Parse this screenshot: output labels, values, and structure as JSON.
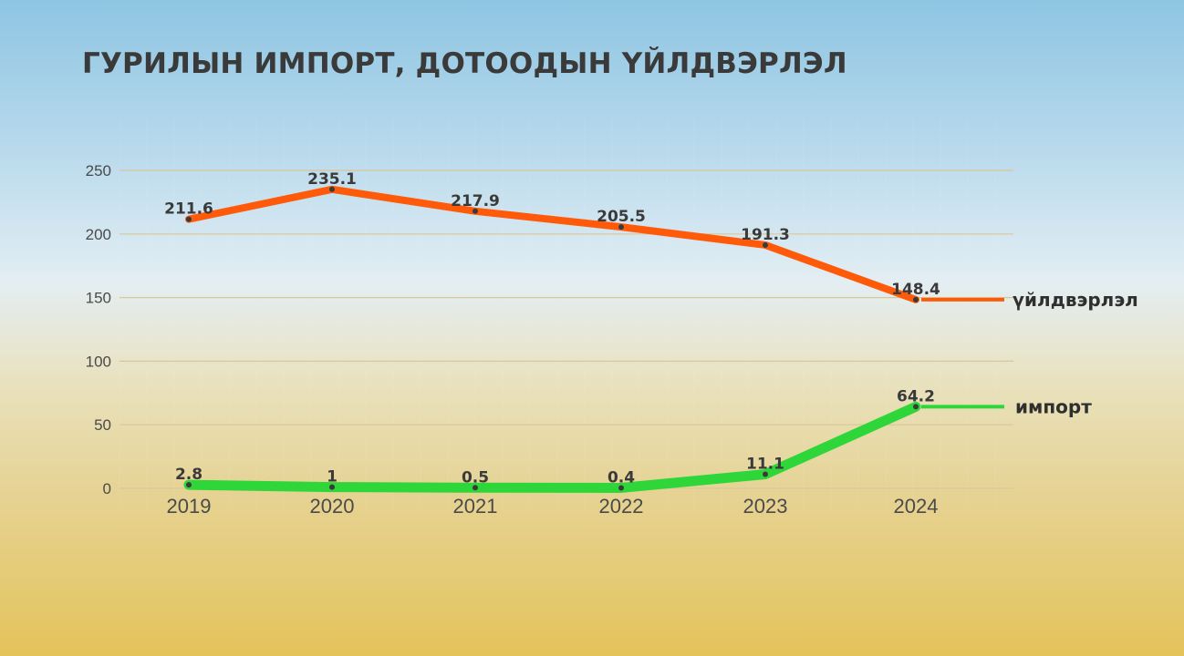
{
  "title": "ГУРИЛЫН ИМПОРТ, ДОТООДЫН ҮЙЛДВЭРЛЭЛ",
  "chart_data": {
    "type": "line",
    "title": "ГУРИЛЫН ИМПОРТ, ДОТООДЫН ҮЙЛДВЭРЛЭЛ",
    "x": [
      "2019",
      "2020",
      "2021",
      "2022",
      "2023",
      "2024"
    ],
    "ylim": [
      0,
      250
    ],
    "yticks": [
      "0",
      "50",
      "100",
      "150",
      "200",
      "250"
    ],
    "grid": true,
    "series": [
      {
        "name": "үйлдвэрлэл",
        "values": [
          211.6,
          235.1,
          217.9,
          205.5,
          191.3,
          148.4
        ],
        "labels": [
          "211.6",
          "235.1",
          "217.9",
          "205.5",
          "191.3",
          "148.4"
        ],
        "color": "#ff5a0a"
      },
      {
        "name": "импорт",
        "values": [
          2.8,
          1,
          0.5,
          0.4,
          11.1,
          64.2
        ],
        "labels": [
          "2.8",
          "1",
          "0.5",
          "0.4",
          "11.1",
          "64.2"
        ],
        "color": "#2fd63a"
      }
    ]
  }
}
